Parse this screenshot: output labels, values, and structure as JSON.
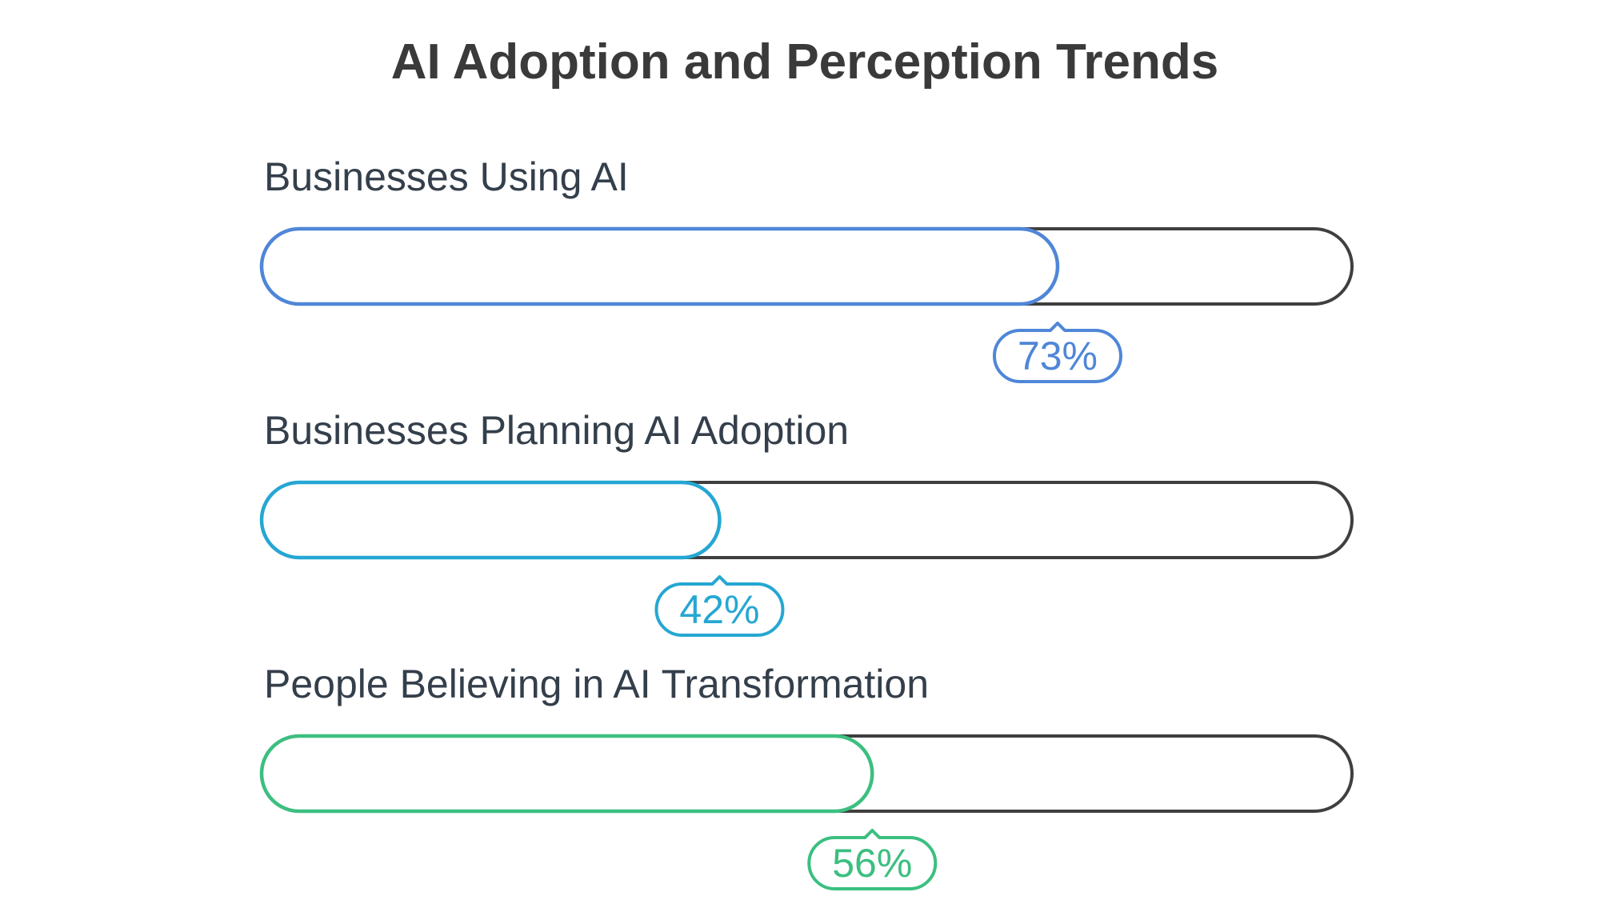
{
  "chart_data": {
    "type": "bar",
    "orientation": "horizontal",
    "title": "AI Adoption and Perception Trends",
    "unit": "%",
    "xlim": [
      0,
      100
    ],
    "categories": [
      "Businesses Using AI",
      "Businesses Planning AI Adoption",
      "People Believing in AI Transformation"
    ],
    "values": [
      73,
      42,
      56
    ],
    "value_labels": [
      "73%",
      "42%",
      "56%"
    ],
    "colors": [
      "#4f86d8",
      "#25a7d2",
      "#3cbf80"
    ],
    "track_color": "#3f3f3f",
    "grid": false,
    "legend": "none"
  }
}
